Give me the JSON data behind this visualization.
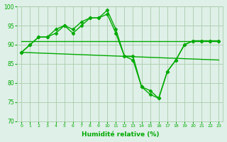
{
  "background_color": "#dff0e8",
  "grid_color": "#aaccaa",
  "line_color": "#00aa00",
  "xlabel": "Humidité relative (%)",
  "xlabel_color": "#00aa00",
  "tick_color": "#00aa00",
  "ylim": [
    70,
    100
  ],
  "xlim": [
    -0.5,
    23.5
  ],
  "yticks": [
    70,
    75,
    80,
    85,
    90,
    95,
    100
  ],
  "xticks": [
    0,
    1,
    2,
    3,
    4,
    5,
    6,
    7,
    8,
    9,
    10,
    11,
    12,
    13,
    14,
    15,
    16,
    17,
    18,
    19,
    20,
    21,
    22,
    23
  ],
  "series_with_markers": [
    {
      "x": [
        0,
        1,
        2,
        3,
        4,
        5,
        6,
        7,
        8,
        9,
        10,
        11,
        12,
        13,
        14,
        15,
        16,
        17,
        18,
        19,
        20,
        21,
        22,
        23
      ],
      "y": [
        88,
        90,
        92,
        92,
        94,
        95,
        94,
        96,
        97,
        97,
        99,
        94,
        87,
        86,
        79,
        77,
        76,
        83,
        86,
        90,
        91,
        91,
        91,
        91
      ]
    },
    {
      "x": [
        0,
        1,
        2,
        3,
        4,
        5,
        6,
        7,
        8,
        9,
        10,
        11,
        12,
        13,
        14,
        15,
        16,
        17,
        18,
        19,
        20,
        21,
        22,
        23
      ],
      "y": [
        88,
        90,
        92,
        92,
        93,
        95,
        93,
        95,
        97,
        97,
        98,
        93,
        87,
        87,
        79,
        78,
        76,
        83,
        86,
        90,
        91,
        91,
        91,
        91
      ]
    }
  ],
  "series_no_markers": [
    {
      "x": [
        0,
        23
      ],
      "y": [
        91,
        91
      ]
    },
    {
      "x": [
        0,
        23
      ],
      "y": [
        88,
        86
      ]
    }
  ],
  "marker": "D",
  "marker_size": 2.5,
  "line_width": 1.0
}
